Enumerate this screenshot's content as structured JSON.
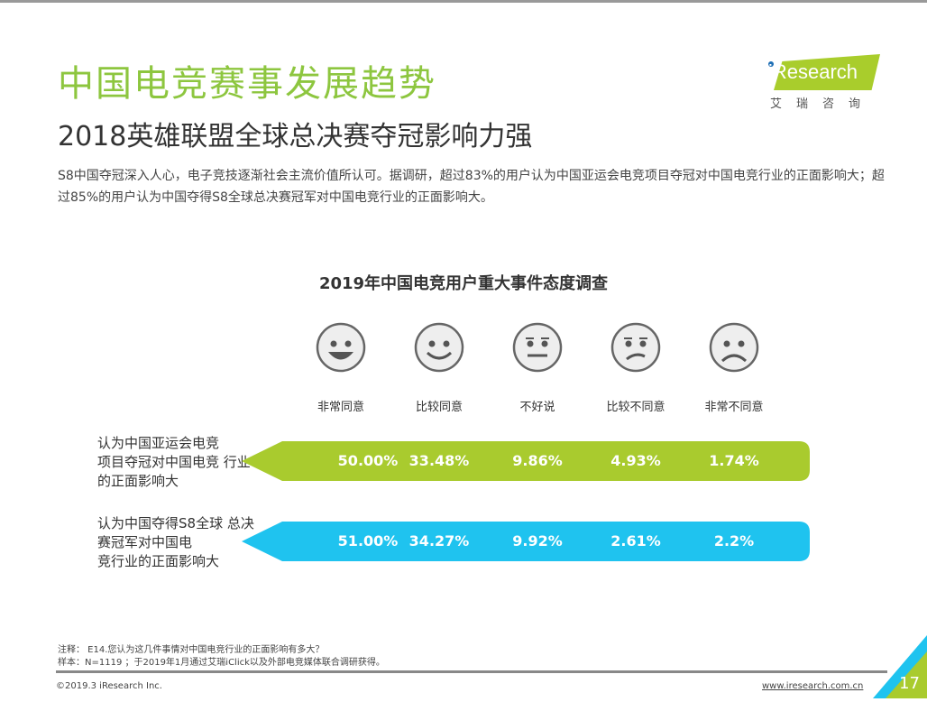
{
  "header": {
    "title": "中国电竞赛事发展趋势",
    "subtitle": "2018英雄联盟全球总决赛夺冠影响力强",
    "description": "S8中国夺冠深入人心，电子竞技逐渐社会主流价值所认可。据调研，超过83%的用户认为中国亚运会电竞项目夺冠对中国电竞行业的正面影响大；超过85%的用户认为中国夺得S8全球总决赛冠军对中国电竞行业的正面影响大。"
  },
  "logo": {
    "brand": "iResearch",
    "cn": "艾瑞咨询"
  },
  "chart_data": {
    "type": "table",
    "title": "2019年中国电竞用户重大事件态度调查",
    "categories": [
      "非常同意",
      "比较同意",
      "不好说",
      "比较不同意",
      "非常不同意"
    ],
    "series": [
      {
        "name": "认为中国亚运会电竞项目夺冠对中国电竞 行业的正面影响大",
        "values": [
          "50.00%",
          "33.48%",
          "9.86%",
          "4.93%",
          "1.74%"
        ],
        "color": "#a9cb2e"
      },
      {
        "name": "认为中国夺得S8全球 总决赛冠军对中国电竞行业的正面影响大",
        "values": [
          "51.00%",
          "34.27%",
          "9.92%",
          "2.61%",
          "2.2%"
        ],
        "color": "#1fc3ef"
      }
    ]
  },
  "row_labels": [
    [
      "认为中国亚运会电竞",
      "项目夺冠对中国电竞 行业",
      "的正面影响大"
    ],
    [
      "认为中国夺得S8全球 总决",
      "赛冠军对中国电",
      "竞行业的正面影响大"
    ]
  ],
  "footer": {
    "note": "注释： E14.您认为这几件事情对中国电竞行业的正面影响有多大？",
    "sample": "样本：N=1119 ；于2019年1月通过艾瑞iClick以及外部电竞媒体联合调研获得。",
    "copyright": "©2019.3 iResearch Inc.",
    "url": "www.iresearch.com.cn",
    "page": "17"
  }
}
